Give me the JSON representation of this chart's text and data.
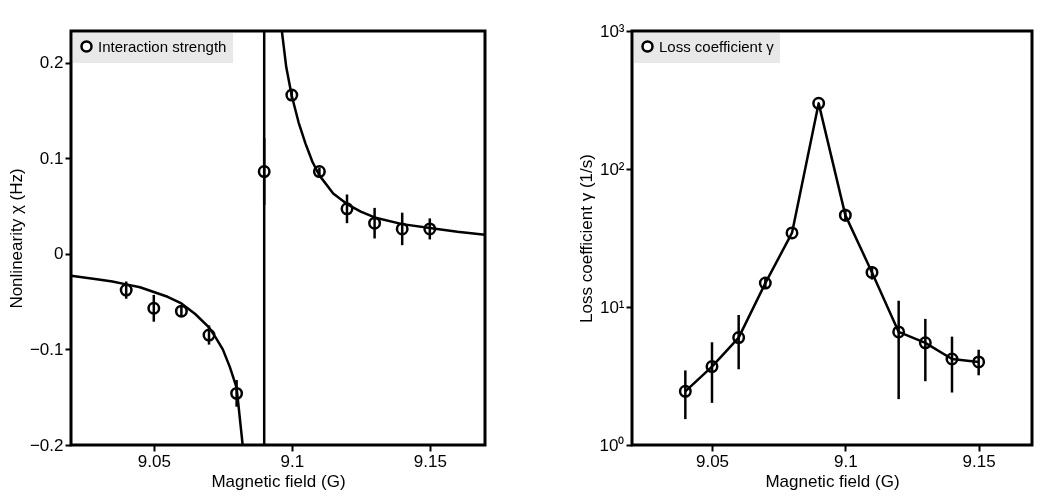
{
  "chart_data": [
    {
      "type": "scatter",
      "xlabel": "Magnetic field (G)",
      "ylabel": "Nonlinearity χ (Hz)",
      "xlim": [
        9.02,
        9.17
      ],
      "ylim": [
        -0.2,
        0.233
      ],
      "xticks": [
        9.05,
        9.1,
        9.15
      ],
      "yticks": [
        -0.2,
        -0.1,
        0,
        0.1,
        0.2
      ],
      "grid": false,
      "legend": "top left",
      "series": [
        {
          "name": "Interaction strength",
          "marker": "circle",
          "color": "#000000",
          "x": [
            9.04,
            9.05,
            9.06,
            9.07,
            9.08,
            9.09,
            9.1,
            9.11,
            9.12,
            9.13,
            9.14,
            9.15
          ],
          "values": [
            -0.038,
            -0.057,
            -0.06,
            -0.085,
            -0.146,
            0.086,
            0.166,
            0.086,
            0.047,
            0.032,
            0.026,
            0.026
          ],
          "errors": [
            0.009,
            0.014,
            0.006,
            0.01,
            0.014,
            0.035,
            0.006,
            0.004,
            0.015,
            0.016,
            0.017,
            0.011
          ]
        },
        {
          "type": "line",
          "marker": "none",
          "line_style": "solid",
          "color": "#000000",
          "x": [
            9.02,
            9.03,
            9.035,
            9.04,
            9.045,
            9.05,
            9.055,
            9.06,
            9.065,
            9.07,
            9.0725,
            9.075,
            9.0775,
            9.08,
            9.0822
          ],
          "values": [
            -0.023,
            -0.027,
            -0.029,
            -0.032,
            -0.035,
            -0.04,
            -0.045,
            -0.052,
            -0.063,
            -0.077,
            -0.088,
            -0.1,
            -0.118,
            -0.14,
            -0.2
          ]
        },
        {
          "type": "line",
          "marker": "none",
          "line_style": "solid",
          "color": "#000000",
          "x": [
            9.0964,
            9.098,
            9.1,
            9.1025,
            9.105,
            9.1075,
            9.11,
            9.115,
            9.12,
            9.125,
            9.13,
            9.14,
            9.15,
            9.16,
            9.17
          ],
          "values": [
            0.233,
            0.195,
            0.165,
            0.137,
            0.115,
            0.096,
            0.082,
            0.063,
            0.052,
            0.044,
            0.038,
            0.031,
            0.027,
            0.023,
            0.02
          ]
        }
      ],
      "ref_lines": [
        {
          "axis": "x",
          "value": 9.09,
          "color": "#000000",
          "line_style": "solid"
        }
      ]
    },
    {
      "type": "line",
      "xlabel": "Magnetic field (G)",
      "ylabel": "Loss coefficient γ (1/s)",
      "log": true,
      "xlim": [
        9.02,
        9.17
      ],
      "ylim": [
        1,
        1000
      ],
      "xticks": [
        9.05,
        9.1,
        9.15
      ],
      "yticks": [
        {
          "value": 1,
          "label": "10⁰"
        },
        {
          "value": 10,
          "label": "10¹"
        },
        {
          "value": 100,
          "label": "10²"
        },
        {
          "value": 1000,
          "label": "10³"
        }
      ],
      "grid": false,
      "legend": "top left",
      "series": [
        {
          "name": "Loss coefficient γ",
          "marker": "circle",
          "line_style": "solid",
          "color": "#000000",
          "x": [
            9.04,
            9.05,
            9.06,
            9.07,
            9.08,
            9.09,
            9.1,
            9.11,
            9.12,
            9.13,
            9.14,
            9.15
          ],
          "values": [
            2.45,
            3.7,
            6.0,
            14.9,
            34.4,
            299,
            46.3,
            17.8,
            6.6,
            5.5,
            4.2,
            4.0
          ],
          "errors": [
            [
              1.54,
              3.47
            ],
            [
              2.02,
              5.55
            ],
            [
              3.54,
              8.75
            ],
            [
              13.6,
              16.4
            ],
            null,
            null,
            [
              41.7,
              51.5
            ],
            [
              15.8,
              19.8
            ],
            [
              2.15,
              11.1
            ],
            [
              2.9,
              8.2
            ],
            [
              2.4,
              6.1
            ],
            [
              3.2,
              4.9
            ]
          ]
        }
      ]
    }
  ]
}
